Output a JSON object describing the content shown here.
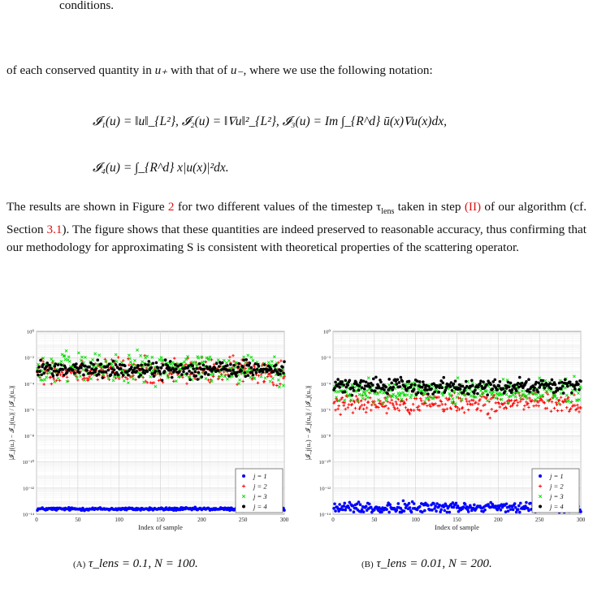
{
  "text": {
    "intro_end": "conditions.",
    "para1_a": "of each conserved quantity in ",
    "para1_u_plus": "u₊",
    "para1_b": " with that of ",
    "para1_u_minus": "u₋",
    "para1_c": ", where we use the following notation:",
    "eq1": "𝓘₁(u) = ‖u‖_{L²},  𝓘₂(u) = ‖∇u‖²_{L²},  𝓘₃(u) = Im ∫_{R^d} ū(x)∇u(x)dx,",
    "eq2": "𝓘₄(u) = ∫_{R^d} x|u(x)|²dx.",
    "para2_a": "The results are shown in Figure ",
    "fig_ref": "2",
    "para2_b": " for two different values of the timestep τ",
    "para2_sub": "lens",
    "para2_c": " taken in step ",
    "step_ref": "(II)",
    "para2_d": " of our algorithm (cf. Section ",
    "sec_ref": "3.1",
    "para2_e": "). The figure shows that these quantities are indeed preserved to reasonable accuracy, thus confirming that our methodology for approximating S is consistent with theoretical properties of the scattering operator."
  },
  "captions": {
    "a_tag": "(A)",
    "a_text": "τ_lens = 0.1, N = 100.",
    "b_tag": "(B)",
    "b_text": "τ_lens = 0.01, N = 200."
  },
  "chart_data": [
    {
      "type": "scatter",
      "xlabel": "Index of sample",
      "ylabel": "|𝓘_j(u₋) − 𝓘_j(u₊)| / |𝓘_j(u₋)|",
      "xlim": [
        0,
        300
      ],
      "ylim": [
        1e-14,
        1
      ],
      "yscale": "log",
      "grid": true,
      "legend_position": "bottom-right",
      "xticks": [
        "0",
        "50",
        "100",
        "150",
        "200",
        "250",
        "300"
      ],
      "yticks": [
        "10⁻¹⁴",
        "10⁻¹²",
        "10⁻¹⁰",
        "10⁻⁸",
        "10⁻⁶",
        "10⁻⁴",
        "10⁻²",
        "10⁰"
      ],
      "series": [
        {
          "name": "j = 1",
          "color": "#0000ff",
          "marker": "dot",
          "log10_center": -13.6,
          "log10_spread": 0.08
        },
        {
          "name": "j = 2",
          "color": "#ff0000",
          "marker": "plus",
          "log10_center": -3.0,
          "log10_spread": 0.7
        },
        {
          "name": "j = 3",
          "color": "#00dd00",
          "marker": "x",
          "log10_center": -2.8,
          "log10_spread": 0.8
        },
        {
          "name": "j = 4",
          "color": "#000000",
          "marker": "dot",
          "log10_center": -2.9,
          "log10_spread": 0.45
        }
      ]
    },
    {
      "type": "scatter",
      "xlabel": "Index of sample",
      "ylabel": "|𝓘_j(u₋) − 𝓘_j(u₊)| / |𝓘_j(u₋)|",
      "xlim": [
        0,
        300
      ],
      "ylim": [
        1e-14,
        1
      ],
      "yscale": "log",
      "grid": true,
      "legend_position": "bottom-right",
      "xticks": [
        "0",
        "50",
        "100",
        "150",
        "200",
        "250",
        "300"
      ],
      "yticks": [
        "10⁻¹⁴",
        "10⁻¹²",
        "10⁻¹⁰",
        "10⁻⁸",
        "10⁻⁶",
        "10⁻⁴",
        "10⁻²",
        "10⁰"
      ],
      "series": [
        {
          "name": "j = 1",
          "color": "#0000ff",
          "marker": "dot",
          "log10_center": -13.5,
          "log10_spread": 0.3
        },
        {
          "name": "j = 2",
          "color": "#ff0000",
          "marker": "plus",
          "log10_center": -5.5,
          "log10_spread": 0.6
        },
        {
          "name": "j = 3",
          "color": "#00dd00",
          "marker": "x",
          "log10_center": -4.6,
          "log10_spread": 0.6
        },
        {
          "name": "j = 4",
          "color": "#000000",
          "marker": "dot",
          "log10_center": -4.2,
          "log10_spread": 0.4
        }
      ]
    }
  ]
}
